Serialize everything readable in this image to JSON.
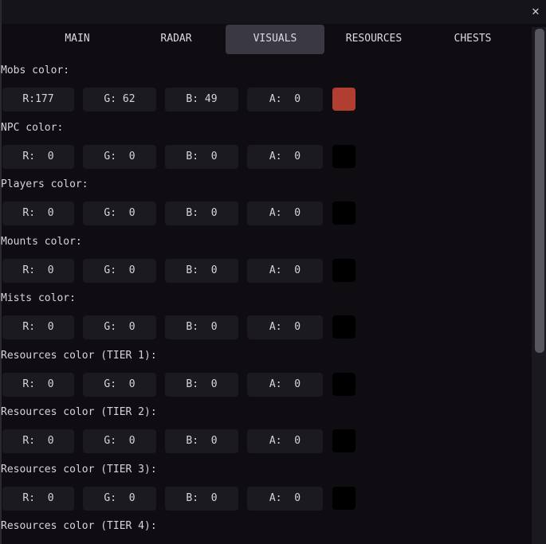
{
  "window": {
    "close_icon": "close-x"
  },
  "tabs": [
    {
      "label": "MAIN",
      "active": false
    },
    {
      "label": "RADAR",
      "active": false
    },
    {
      "label": "VISUALS",
      "active": true
    },
    {
      "label": "RESOURCES",
      "active": false
    },
    {
      "label": "CHESTS",
      "active": false
    }
  ],
  "colors": {
    "background": "#0f0d12",
    "field": "#1b1a21",
    "active_tab": "#393843",
    "scrollbar_thumb": "#57565f"
  },
  "sections": [
    {
      "label": "Mobs color:",
      "r": "R:177",
      "g": "G: 62",
      "b": "B: 49",
      "a": "A:  0",
      "swatch": "#b13e31"
    },
    {
      "label": "NPC color:",
      "r": "R:  0",
      "g": "G:  0",
      "b": "B:  0",
      "a": "A:  0",
      "swatch": "#000000"
    },
    {
      "label": "Players color:",
      "r": "R:  0",
      "g": "G:  0",
      "b": "B:  0",
      "a": "A:  0",
      "swatch": "#000000"
    },
    {
      "label": "Mounts color:",
      "r": "R:  0",
      "g": "G:  0",
      "b": "B:  0",
      "a": "A:  0",
      "swatch": "#000000"
    },
    {
      "label": "Mists color:",
      "r": "R:  0",
      "g": "G:  0",
      "b": "B:  0",
      "a": "A:  0",
      "swatch": "#000000"
    },
    {
      "label": "Resources color (TIER 1):",
      "r": "R:  0",
      "g": "G:  0",
      "b": "B:  0",
      "a": "A:  0",
      "swatch": "#000000"
    },
    {
      "label": "Resources color (TIER 2):",
      "r": "R:  0",
      "g": "G:  0",
      "b": "B:  0",
      "a": "A:  0",
      "swatch": "#000000"
    },
    {
      "label": "Resources color (TIER 3):",
      "r": "R:  0",
      "g": "G:  0",
      "b": "B:  0",
      "a": "A:  0",
      "swatch": "#000000"
    },
    {
      "label": "Resources color (TIER 4):",
      "r": "",
      "g": "",
      "b": "",
      "a": "",
      "swatch": ""
    }
  ]
}
